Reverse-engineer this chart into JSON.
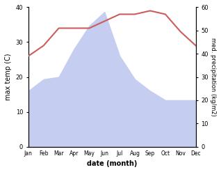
{
  "months": [
    "Jan",
    "Feb",
    "Mar",
    "Apr",
    "May",
    "Jun",
    "Jul",
    "Aug",
    "Sep",
    "Oct",
    "Nov",
    "Dec"
  ],
  "temperature": [
    26,
    29,
    34,
    34,
    34,
    36,
    38,
    38,
    39,
    38,
    33,
    29
  ],
  "precipitation": [
    24,
    29,
    30,
    42,
    52,
    58,
    39,
    29,
    24,
    20,
    20,
    20
  ],
  "temp_color": "#cd5c5c",
  "precip_fill_color": "#c5cdf0",
  "temp_ylim": [
    0,
    40
  ],
  "precip_ylim": [
    0,
    60
  ],
  "xlabel": "date (month)",
  "ylabel_left": "max temp (C)",
  "ylabel_right": "med. precipitation (kg/m2)",
  "temp_yticks": [
    0,
    10,
    20,
    30,
    40
  ],
  "precip_yticks": [
    0,
    10,
    20,
    30,
    40,
    50,
    60
  ]
}
